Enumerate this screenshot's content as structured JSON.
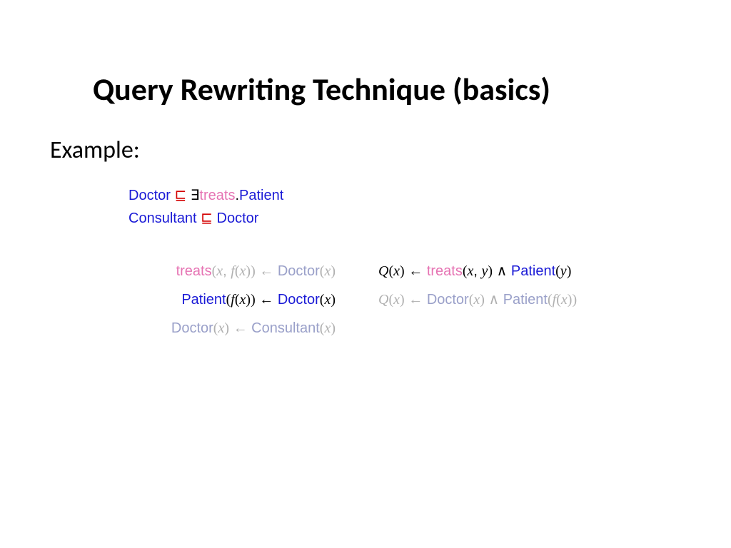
{
  "title": "Query Rewriting Technique (basics)",
  "example_label": "Example:",
  "colors": {
    "concept_blue": "#1a1ad6",
    "symbol_red": "#d40000",
    "role_pink": "#e673b3",
    "faded_blue": "#9aa0c9",
    "faded_gray": "#b0b0b0",
    "text_black": "#000000",
    "background": "#ffffff"
  },
  "axioms": [
    {
      "tokens": [
        {
          "text": "Doctor",
          "color": "blue"
        },
        {
          "text": " ⊑ ",
          "color": "red"
        },
        {
          "text": "∃",
          "color": "black"
        },
        {
          "text": "treats",
          "color": "pink"
        },
        {
          "text": ".",
          "color": "black"
        },
        {
          "text": "Patient",
          "color": "blue"
        }
      ]
    },
    {
      "tokens": [
        {
          "text": "Consultant",
          "color": "blue"
        },
        {
          "text": " ⊑ ",
          "color": "red"
        },
        {
          "text": "Doctor",
          "color": "blue"
        }
      ]
    }
  ],
  "left_rules": [
    {
      "faded": true,
      "tokens": [
        {
          "text": "treats",
          "color": "pink"
        },
        {
          "text": "(",
          "color": "pgray",
          "paren": true
        },
        {
          "text": "x",
          "color": "pgray",
          "italic": true
        },
        {
          "text": ", ",
          "color": "pgray"
        },
        {
          "text": "f",
          "color": "pgray",
          "italic": true
        },
        {
          "text": "(",
          "color": "pgray",
          "paren": true
        },
        {
          "text": "x",
          "color": "pgray",
          "italic": true
        },
        {
          "text": "))",
          "color": "pgray",
          "paren": true
        },
        {
          "text": " ← ",
          "color": "pgray"
        },
        {
          "text": "Doctor",
          "color": "gray"
        },
        {
          "text": "(",
          "color": "pgray",
          "paren": true
        },
        {
          "text": "x",
          "color": "pgray",
          "italic": true
        },
        {
          "text": ")",
          "color": "pgray",
          "paren": true
        }
      ]
    },
    {
      "faded": false,
      "tokens": [
        {
          "text": "Patient",
          "color": "blue"
        },
        {
          "text": "(",
          "color": "black",
          "paren": true
        },
        {
          "text": "f",
          "color": "black",
          "italic": true
        },
        {
          "text": "(",
          "color": "black",
          "paren": true
        },
        {
          "text": "x",
          "color": "black",
          "italic": true
        },
        {
          "text": "))",
          "color": "black",
          "paren": true
        },
        {
          "text": " ← ",
          "color": "black"
        },
        {
          "text": "Doctor",
          "color": "blue"
        },
        {
          "text": "(",
          "color": "black",
          "paren": true
        },
        {
          "text": "x",
          "color": "black",
          "italic": true
        },
        {
          "text": ")",
          "color": "black",
          "paren": true
        }
      ]
    },
    {
      "faded": true,
      "tokens": [
        {
          "text": "Doctor",
          "color": "gray"
        },
        {
          "text": "(",
          "color": "pgray",
          "paren": true
        },
        {
          "text": "x",
          "color": "pgray",
          "italic": true
        },
        {
          "text": ")",
          "color": "pgray",
          "paren": true
        },
        {
          "text": " ← ",
          "color": "pgray"
        },
        {
          "text": "Consultant",
          "color": "gray"
        },
        {
          "text": "(",
          "color": "pgray",
          "paren": true
        },
        {
          "text": "x",
          "color": "pgray",
          "italic": true
        },
        {
          "text": ")",
          "color": "pgray",
          "paren": true
        }
      ]
    }
  ],
  "right_rules": [
    {
      "faded": false,
      "tokens": [
        {
          "text": "Q",
          "color": "black",
          "italic": true
        },
        {
          "text": "(",
          "color": "black",
          "paren": true
        },
        {
          "text": "x",
          "color": "black",
          "italic": true
        },
        {
          "text": ")",
          "color": "black",
          "paren": true
        },
        {
          "text": " ← ",
          "color": "black"
        },
        {
          "text": "treats",
          "color": "pink"
        },
        {
          "text": "(",
          "color": "black",
          "paren": true
        },
        {
          "text": "x",
          "color": "black",
          "italic": true
        },
        {
          "text": ", ",
          "color": "black"
        },
        {
          "text": "y",
          "color": "black",
          "italic": true
        },
        {
          "text": ")",
          "color": "black",
          "paren": true
        },
        {
          "text": " ∧ ",
          "color": "black"
        },
        {
          "text": "Patient",
          "color": "blue"
        },
        {
          "text": "(",
          "color": "black",
          "paren": true
        },
        {
          "text": "y",
          "color": "black",
          "italic": true
        },
        {
          "text": ")",
          "color": "black",
          "paren": true
        }
      ]
    },
    {
      "faded": true,
      "tokens": [
        {
          "text": "Q",
          "color": "pgray",
          "italic": true
        },
        {
          "text": "(",
          "color": "pgray",
          "paren": true
        },
        {
          "text": "x",
          "color": "pgray",
          "italic": true
        },
        {
          "text": ")",
          "color": "pgray",
          "paren": true
        },
        {
          "text": " ← ",
          "color": "pgray"
        },
        {
          "text": "Doctor",
          "color": "gray"
        },
        {
          "text": "(",
          "color": "pgray",
          "paren": true
        },
        {
          "text": "x",
          "color": "pgray",
          "italic": true
        },
        {
          "text": ")",
          "color": "pgray",
          "paren": true
        },
        {
          "text": " ∧ ",
          "color": "pgray"
        },
        {
          "text": "Patient",
          "color": "gray"
        },
        {
          "text": "(",
          "color": "pgray",
          "paren": true
        },
        {
          "text": "f",
          "color": "pgray",
          "italic": true
        },
        {
          "text": "(",
          "color": "pgray",
          "paren": true
        },
        {
          "text": "x",
          "color": "pgray",
          "italic": true
        },
        {
          "text": "))",
          "color": "pgray",
          "paren": true
        }
      ]
    }
  ]
}
